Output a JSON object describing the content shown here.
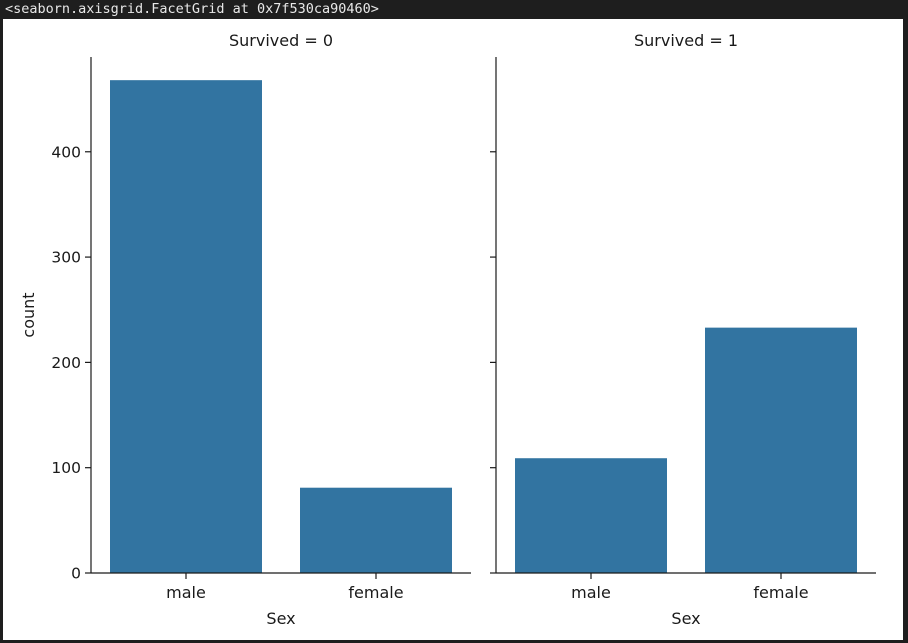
{
  "output_header": "<seaborn.axisgrid.FacetGrid at 0x7f530ca90460>",
  "colors": {
    "bar": "#3274a1",
    "axis": "#1a1a1a"
  },
  "chart_data": [
    {
      "type": "bar",
      "title": "Survived = 0",
      "xlabel": "Sex",
      "ylabel": "count",
      "categories": [
        "male",
        "female"
      ],
      "values": [
        468,
        81
      ],
      "ylim": [
        0,
        490
      ],
      "yticks": [
        0,
        100,
        200,
        300,
        400
      ],
      "show_ytick_labels": true,
      "grid": false
    },
    {
      "type": "bar",
      "title": "Survived = 1",
      "xlabel": "Sex",
      "ylabel": "",
      "categories": [
        "male",
        "female"
      ],
      "values": [
        109,
        233
      ],
      "ylim": [
        0,
        490
      ],
      "yticks": [
        0,
        100,
        200,
        300,
        400
      ],
      "show_ytick_labels": false,
      "grid": false
    }
  ]
}
